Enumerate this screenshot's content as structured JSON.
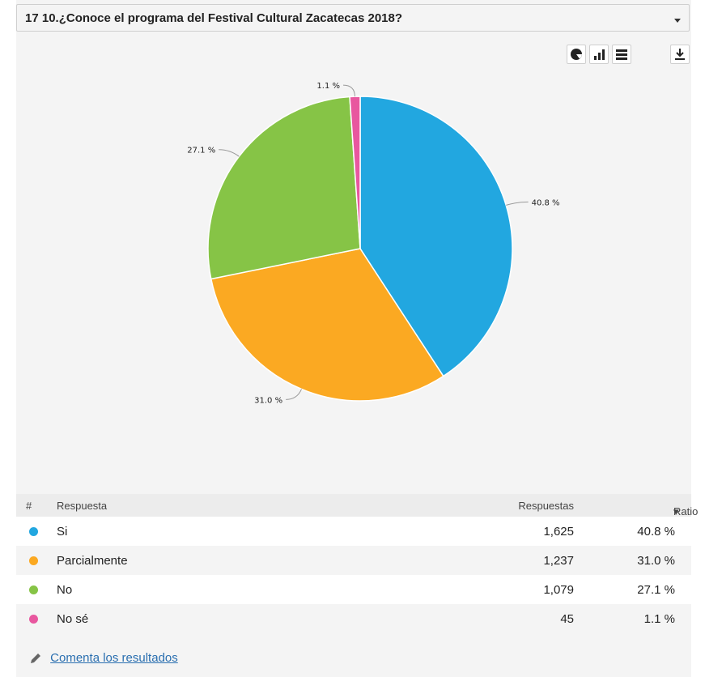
{
  "header": {
    "title": "17 10.¿Conoce el programa del Festival Cultural Zacatecas 2018?"
  },
  "toolbar": {
    "icons": [
      "pie-chart-icon",
      "bar-chart-icon",
      "table-icon",
      "download-icon"
    ]
  },
  "chart_data": {
    "type": "pie",
    "title": "",
    "categories": [
      "Si",
      "Parcialmente",
      "No",
      "No sé"
    ],
    "values": [
      40.8,
      31.0,
      27.1,
      1.1
    ],
    "labels": [
      "40.8 %",
      "31.0 %",
      "27.1 %",
      "1.1 %"
    ],
    "colors": [
      "#22a7e0",
      "#fba922",
      "#86c446",
      "#e8579f"
    ]
  },
  "table": {
    "headers": {
      "index": "#",
      "answer": "Respuesta",
      "responses": "Respuestas",
      "ratio": "Ratio"
    },
    "rows": [
      {
        "label": "Si",
        "count": "1,625",
        "ratio": "40.8 %",
        "color": "#22a7e0"
      },
      {
        "label": "Parcialmente",
        "count": "1,237",
        "ratio": "31.0 %",
        "color": "#fba922"
      },
      {
        "label": "No",
        "count": "1,079",
        "ratio": "27.1 %",
        "color": "#86c446"
      },
      {
        "label": "No sé",
        "count": "45",
        "ratio": "1.1 %",
        "color": "#e8579f"
      }
    ]
  },
  "footer": {
    "comment_link": "Comenta los resultados"
  }
}
